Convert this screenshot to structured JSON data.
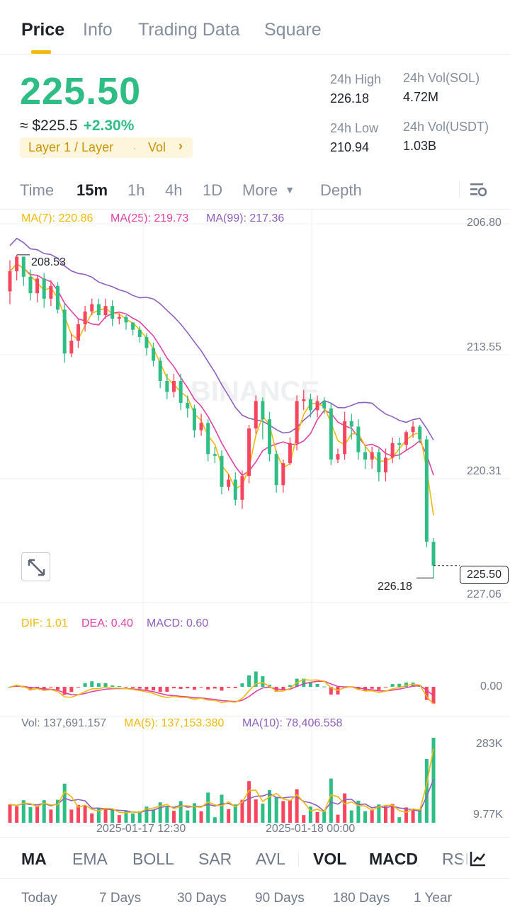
{
  "tabs": [
    "Price",
    "Info",
    "Trading Data",
    "Square"
  ],
  "price": {
    "last": "225.50",
    "usd": "≈ $225.5",
    "change": "+2.30%",
    "tag_left": "Layer 1 / Layer",
    "tag_right": "Vol"
  },
  "stats": {
    "high_label": "24h High",
    "high": "226.18",
    "vol_sol_label": "24h Vol(SOL)",
    "vol_sol": "4.72M",
    "low_label": "24h Low",
    "low": "210.94",
    "vol_usdt_label": "24h Vol(USDT)",
    "vol_usdt": "1.03B"
  },
  "intervals": [
    "Time",
    "15m",
    "1h",
    "4h",
    "1D",
    "More",
    "Depth"
  ],
  "ma_legend": {
    "ma7": "MA(7): 220.86",
    "ma25": "MA(25): 219.73",
    "ma99": "MA(99): 217.36"
  },
  "axis": {
    "price_ticks": [
      "206.80",
      "213.55",
      "220.31",
      "227.06"
    ],
    "high_marker": "208.53",
    "low_marker": "226.18",
    "last_price_tag": "225.50",
    "macd_zero": "0.00",
    "vol_top": "283K",
    "vol_bottom": "9.77K",
    "dates": [
      "2025-01-17 12:30",
      "2025-01-18 00:00"
    ]
  },
  "macd_legend": {
    "dif": "DIF: 1.01",
    "dea": "DEA: 0.40",
    "macd": "MACD: 0.60"
  },
  "vol_legend": {
    "vol": "Vol: 137,691.157",
    "ma5": "MA(5): 137,153.380",
    "ma10": "MA(10): 78,406.558"
  },
  "indicators": [
    "MA",
    "EMA",
    "BOLL",
    "SAR",
    "AVL",
    "VOL",
    "MACD",
    "RSI"
  ],
  "periods": [
    "Today",
    "7 Days",
    "30 Days",
    "90 Days",
    "180 Days",
    "1 Year"
  ],
  "watermark": "BINANCE",
  "colors": {
    "up": "#2ebd85",
    "down": "#f6465d",
    "ma7": "#f0b90b",
    "ma25": "#e040a8",
    "ma99": "#8e5fbf",
    "accent": "#f0b90b"
  },
  "chart_data": {
    "type": "candlestick",
    "y_axis": "inverted",
    "ylim": [
      206.8,
      227.06
    ],
    "candles": [
      [
        210.5,
        209.4,
        208.8,
        211.2
      ],
      [
        209.4,
        208.6,
        208.5,
        209.9
      ],
      [
        208.6,
        209.7,
        208.6,
        210.2
      ],
      [
        209.7,
        210.6,
        209.3,
        211.0
      ],
      [
        210.6,
        209.8,
        209.6,
        211.1
      ],
      [
        209.8,
        210.9,
        209.5,
        211.4
      ],
      [
        210.9,
        210.2,
        209.9,
        211.3
      ],
      [
        210.2,
        211.5,
        210.0,
        211.7
      ],
      [
        211.5,
        213.9,
        211.2,
        214.4
      ],
      [
        213.9,
        213.2,
        212.8,
        214.1
      ],
      [
        213.2,
        212.3,
        212.0,
        213.6
      ],
      [
        212.3,
        211.6,
        211.3,
        212.7
      ],
      [
        211.6,
        211.2,
        210.9,
        211.8
      ],
      [
        211.2,
        211.8,
        210.9,
        212.1
      ],
      [
        211.8,
        211.3,
        210.9,
        212.0
      ],
      [
        211.3,
        212.0,
        211.0,
        212.4
      ],
      [
        212.0,
        211.9,
        211.7,
        212.3
      ],
      [
        211.9,
        212.2,
        211.8,
        212.6
      ],
      [
        212.2,
        212.6,
        212.2,
        212.9
      ],
      [
        212.6,
        213.0,
        212.4,
        213.3
      ],
      [
        213.0,
        213.6,
        212.8,
        214.0
      ],
      [
        213.6,
        214.3,
        213.3,
        214.6
      ],
      [
        214.3,
        215.4,
        214.1,
        215.8
      ],
      [
        215.4,
        216.0,
        215.0,
        216.4
      ],
      [
        216.0,
        215.4,
        215.0,
        216.3
      ],
      [
        215.4,
        216.6,
        215.0,
        217.0
      ],
      [
        216.6,
        216.9,
        216.2,
        217.4
      ],
      [
        216.9,
        218.1,
        216.7,
        218.5
      ],
      [
        218.1,
        217.7,
        217.2,
        218.4
      ],
      [
        217.7,
        219.4,
        217.5,
        219.8
      ],
      [
        219.4,
        219.5,
        219.0,
        219.9
      ],
      [
        219.5,
        221.2,
        219.2,
        221.6
      ],
      [
        221.2,
        220.8,
        220.5,
        221.4
      ],
      [
        220.8,
        221.9,
        220.4,
        222.2
      ],
      [
        221.9,
        220.6,
        220.3,
        222.4
      ],
      [
        220.6,
        218.0,
        217.8,
        221.0
      ],
      [
        218.0,
        216.5,
        216.2,
        218.3
      ],
      [
        216.5,
        217.5,
        216.3,
        218.6
      ],
      [
        217.5,
        219.4,
        217.1,
        219.8
      ],
      [
        219.4,
        221.1,
        219.2,
        221.5
      ],
      [
        221.1,
        219.9,
        219.7,
        221.5
      ],
      [
        219.9,
        218.8,
        218.5,
        220.0
      ],
      [
        218.8,
        216.5,
        216.2,
        219.2
      ],
      [
        216.5,
        216.4,
        215.9,
        217.0
      ],
      [
        216.4,
        217.0,
        216.1,
        217.4
      ],
      [
        217.0,
        216.5,
        216.2,
        217.4
      ],
      [
        216.5,
        216.9,
        216.3,
        217.2
      ],
      [
        216.9,
        219.7,
        216.6,
        220.0
      ],
      [
        219.7,
        219.4,
        219.1,
        219.9
      ],
      [
        219.4,
        217.6,
        217.1,
        219.7
      ],
      [
        217.6,
        217.9,
        217.2,
        218.6
      ],
      [
        217.9,
        219.3,
        217.5,
        219.7
      ],
      [
        219.3,
        219.7,
        219.0,
        220.2
      ],
      [
        219.7,
        219.3,
        219.0,
        220.2
      ],
      [
        219.3,
        220.4,
        219.1,
        220.9
      ],
      [
        220.4,
        219.6,
        219.1,
        220.9
      ],
      [
        219.6,
        218.8,
        218.5,
        219.9
      ],
      [
        218.8,
        218.9,
        218.5,
        219.7
      ],
      [
        218.9,
        218.2,
        218.1,
        219.2
      ],
      [
        218.2,
        217.9,
        217.6,
        218.5
      ],
      [
        217.9,
        218.6,
        217.8,
        218.8
      ],
      [
        218.6,
        224.2,
        218.4,
        224.5
      ],
      [
        224.2,
        225.5,
        224.0,
        226.18
      ]
    ]
  }
}
